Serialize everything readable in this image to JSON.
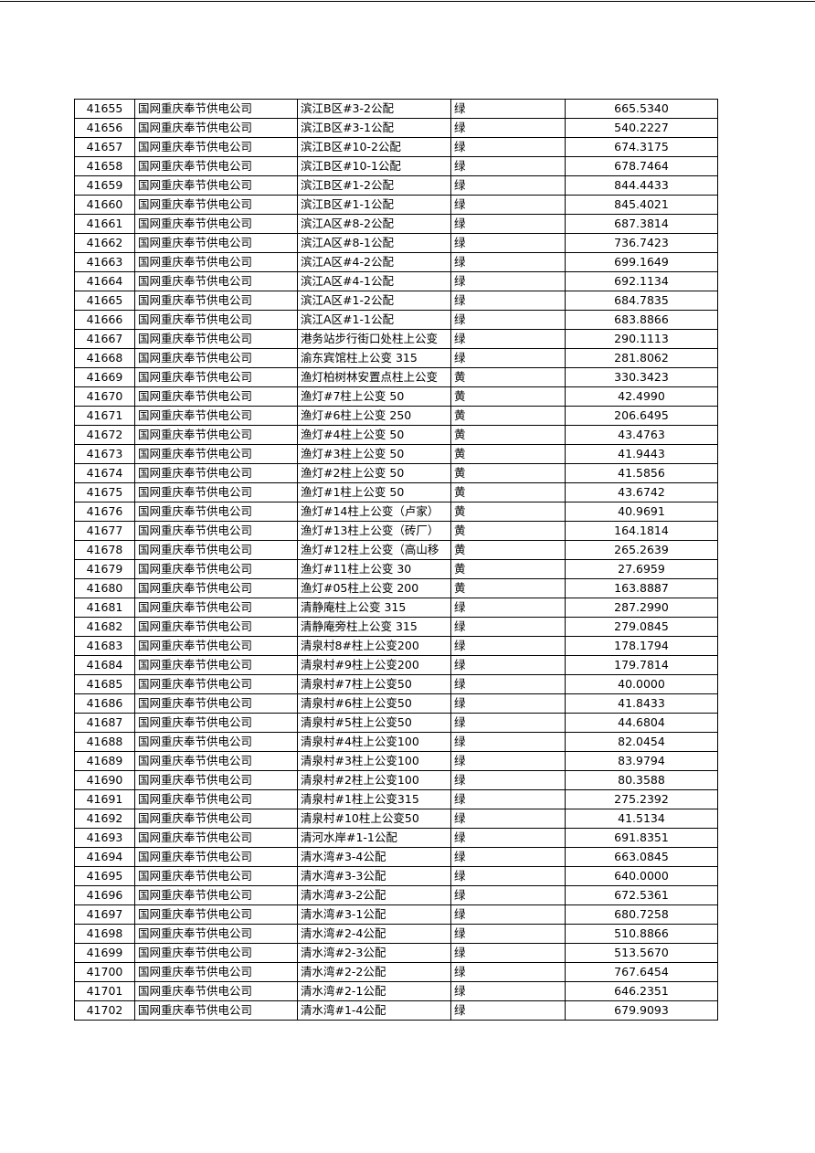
{
  "table": {
    "rows": [
      [
        "41655",
        "国网重庆奉节供电公司",
        "滨江B区#3-2公配",
        "绿",
        "665.5340"
      ],
      [
        "41656",
        "国网重庆奉节供电公司",
        "滨江B区#3-1公配",
        "绿",
        "540.2227"
      ],
      [
        "41657",
        "国网重庆奉节供电公司",
        "滨江B区#10-2公配",
        "绿",
        "674.3175"
      ],
      [
        "41658",
        "国网重庆奉节供电公司",
        "滨江B区#10-1公配",
        "绿",
        "678.7464"
      ],
      [
        "41659",
        "国网重庆奉节供电公司",
        "滨江B区#1-2公配",
        "绿",
        "844.4433"
      ],
      [
        "41660",
        "国网重庆奉节供电公司",
        "滨江B区#1-1公配",
        "绿",
        "845.4021"
      ],
      [
        "41661",
        "国网重庆奉节供电公司",
        "滨江A区#8-2公配",
        "绿",
        "687.3814"
      ],
      [
        "41662",
        "国网重庆奉节供电公司",
        "滨江A区#8-1公配",
        "绿",
        "736.7423"
      ],
      [
        "41663",
        "国网重庆奉节供电公司",
        "滨江A区#4-2公配",
        "绿",
        "699.1649"
      ],
      [
        "41664",
        "国网重庆奉节供电公司",
        "滨江A区#4-1公配",
        "绿",
        "692.1134"
      ],
      [
        "41665",
        "国网重庆奉节供电公司",
        "滨江A区#1-2公配",
        "绿",
        "684.7835"
      ],
      [
        "41666",
        "国网重庆奉节供电公司",
        "滨江A区#1-1公配",
        "绿",
        "683.8866"
      ],
      [
        "41667",
        "国网重庆奉节供电公司",
        "港务站步行街口处柱上公变",
        "绿",
        "290.1113"
      ],
      [
        "41668",
        "国网重庆奉节供电公司",
        "渝东宾馆柱上公变 315",
        "绿",
        "281.8062"
      ],
      [
        "41669",
        "国网重庆奉节供电公司",
        "渔灯柏树林安置点柱上公变",
        "黄",
        "330.3423"
      ],
      [
        "41670",
        "国网重庆奉节供电公司",
        "渔灯#7柱上公变 50",
        "黄",
        "42.4990"
      ],
      [
        "41671",
        "国网重庆奉节供电公司",
        "渔灯#6柱上公变 250",
        "黄",
        "206.6495"
      ],
      [
        "41672",
        "国网重庆奉节供电公司",
        "渔灯#4柱上公变 50",
        "黄",
        "43.4763"
      ],
      [
        "41673",
        "国网重庆奉节供电公司",
        "渔灯#3柱上公变 50",
        "黄",
        "41.9443"
      ],
      [
        "41674",
        "国网重庆奉节供电公司",
        "渔灯#2柱上公变 50",
        "黄",
        "41.5856"
      ],
      [
        "41675",
        "国网重庆奉节供电公司",
        "渔灯#1柱上公变 50",
        "黄",
        "43.6742"
      ],
      [
        "41676",
        "国网重庆奉节供电公司",
        "渔灯#14柱上公变（卢家）",
        "黄",
        "40.9691"
      ],
      [
        "41677",
        "国网重庆奉节供电公司",
        "渔灯#13柱上公变（砖厂）",
        "黄",
        "164.1814"
      ],
      [
        "41678",
        "国网重庆奉节供电公司",
        "渔灯#12柱上公变（高山移",
        "黄",
        "265.2639"
      ],
      [
        "41679",
        "国网重庆奉节供电公司",
        "渔灯#11柱上公变  30",
        "黄",
        "27.6959"
      ],
      [
        "41680",
        "国网重庆奉节供电公司",
        "渔灯#05柱上公变 200",
        "黄",
        "163.8887"
      ],
      [
        "41681",
        "国网重庆奉节供电公司",
        "清静庵柱上公变 315",
        "绿",
        "287.2990"
      ],
      [
        "41682",
        "国网重庆奉节供电公司",
        "清静庵旁柱上公变 315",
        "绿",
        "279.0845"
      ],
      [
        "41683",
        "国网重庆奉节供电公司",
        "清泉村8#柱上公变200",
        "绿",
        "178.1794"
      ],
      [
        "41684",
        "国网重庆奉节供电公司",
        "清泉村#9柱上公变200",
        "绿",
        "179.7814"
      ],
      [
        "41685",
        "国网重庆奉节供电公司",
        "清泉村#7柱上公变50",
        "绿",
        "40.0000"
      ],
      [
        "41686",
        "国网重庆奉节供电公司",
        "清泉村#6柱上公变50",
        "绿",
        "41.8433"
      ],
      [
        "41687",
        "国网重庆奉节供电公司",
        "清泉村#5柱上公变50",
        "绿",
        "44.6804"
      ],
      [
        "41688",
        "国网重庆奉节供电公司",
        "清泉村#4柱上公变100",
        "绿",
        "82.0454"
      ],
      [
        "41689",
        "国网重庆奉节供电公司",
        "清泉村#3柱上公变100",
        "绿",
        "83.9794"
      ],
      [
        "41690",
        "国网重庆奉节供电公司",
        "清泉村#2柱上公变100",
        "绿",
        "80.3588"
      ],
      [
        "41691",
        "国网重庆奉节供电公司",
        "清泉村#1柱上公变315",
        "绿",
        "275.2392"
      ],
      [
        "41692",
        "国网重庆奉节供电公司",
        "清泉村#10柱上公变50",
        "绿",
        "41.5134"
      ],
      [
        "41693",
        "国网重庆奉节供电公司",
        "清河水岸#1-1公配",
        "绿",
        "691.8351"
      ],
      [
        "41694",
        "国网重庆奉节供电公司",
        "清水湾#3-4公配",
        "绿",
        "663.0845"
      ],
      [
        "41695",
        "国网重庆奉节供电公司",
        "清水湾#3-3公配",
        "绿",
        "640.0000"
      ],
      [
        "41696",
        "国网重庆奉节供电公司",
        "清水湾#3-2公配",
        "绿",
        "672.5361"
      ],
      [
        "41697",
        "国网重庆奉节供电公司",
        "清水湾#3-1公配",
        "绿",
        "680.7258"
      ],
      [
        "41698",
        "国网重庆奉节供电公司",
        "清水湾#2-4公配",
        "绿",
        "510.8866"
      ],
      [
        "41699",
        "国网重庆奉节供电公司",
        "清水湾#2-3公配",
        "绿",
        "513.5670"
      ],
      [
        "41700",
        "国网重庆奉节供电公司",
        "清水湾#2-2公配",
        "绿",
        "767.6454"
      ],
      [
        "41701",
        "国网重庆奉节供电公司",
        "清水湾#2-1公配",
        "绿",
        "646.2351"
      ],
      [
        "41702",
        "国网重庆奉节供电公司",
        "清水湾#1-4公配",
        "绿",
        "679.9093"
      ]
    ]
  }
}
